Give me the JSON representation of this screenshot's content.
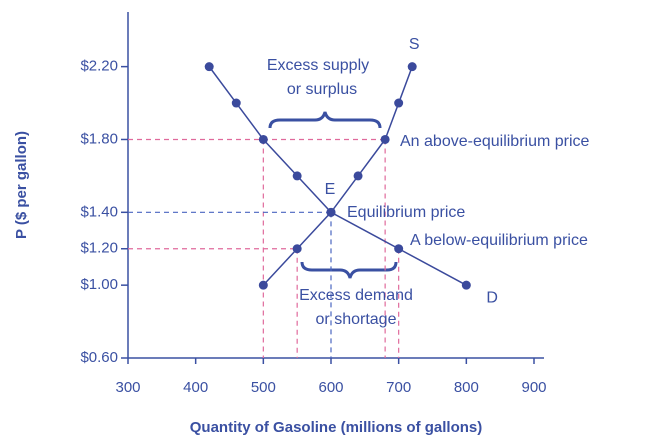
{
  "chart_data": {
    "type": "line",
    "xlabel": "Quantity of Gasoline (millions of gallons)",
    "ylabel": "P ($ per gallon)",
    "xlim": [
      300,
      900
    ],
    "xticks": [
      300,
      400,
      500,
      600,
      700,
      800,
      900
    ],
    "ylim": [
      0.6,
      2.5
    ],
    "yticks": [
      {
        "value": 0.6,
        "label": "$0.60"
      },
      {
        "value": 1.0,
        "label": "$1.00"
      },
      {
        "value": 1.2,
        "label": "$1.20"
      },
      {
        "value": 1.4,
        "label": "$1.40"
      },
      {
        "value": 1.8,
        "label": "$1.80"
      },
      {
        "value": 2.2,
        "label": "$2.20"
      }
    ],
    "series": [
      {
        "name": "S",
        "color": "#3b4a9c",
        "x": [
          500,
          550,
          600,
          640,
          680,
          700,
          720
        ],
        "values": [
          1.0,
          1.2,
          1.4,
          1.6,
          1.8,
          2.0,
          2.2
        ]
      },
      {
        "name": "D",
        "color": "#3b4a9c",
        "x": [
          420,
          460,
          500,
          550,
          600,
          700,
          800
        ],
        "values": [
          2.2,
          2.0,
          1.8,
          1.6,
          1.4,
          1.2,
          1.0
        ]
      }
    ],
    "annotations": [
      "Excess supply",
      "or surplus",
      "An above-equilibrium price",
      "E",
      "Equilibrium price",
      "A below-equilibrium price",
      "Excess demand",
      "or shortage"
    ]
  }
}
